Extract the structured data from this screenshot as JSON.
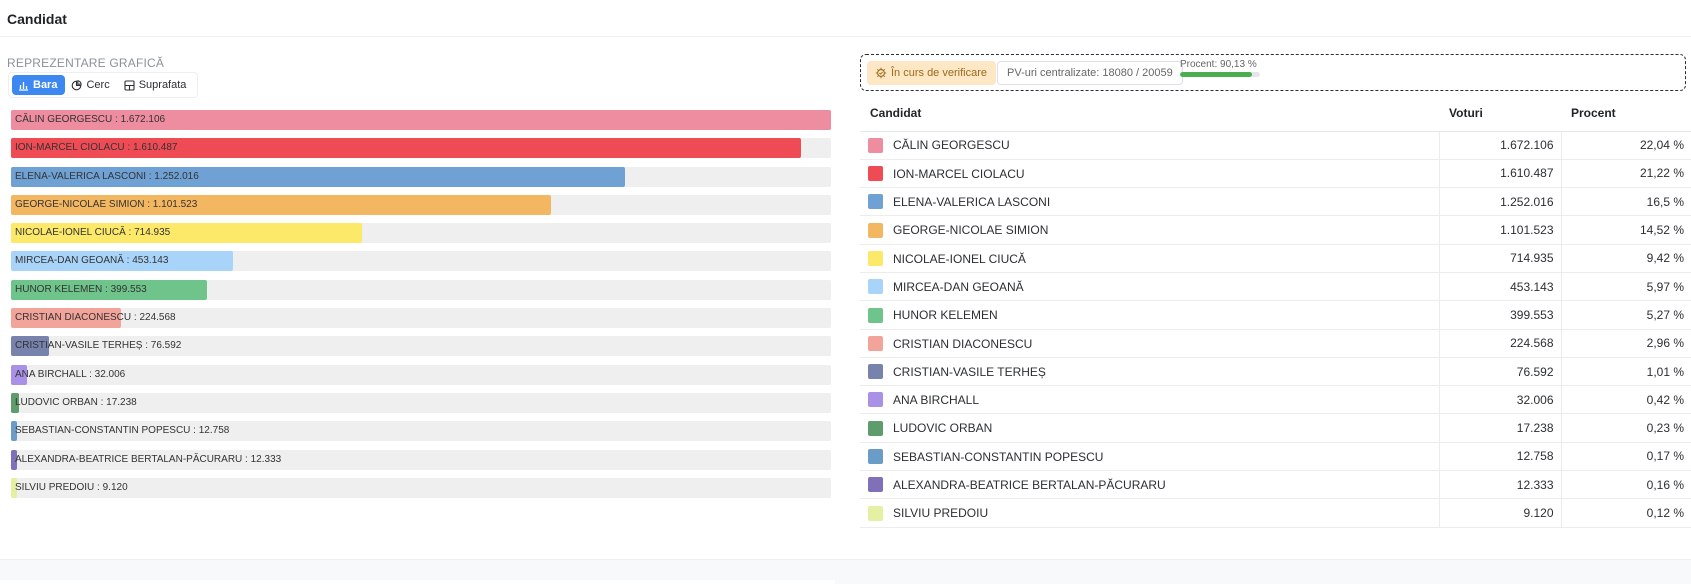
{
  "header": {
    "title": "Candidat"
  },
  "chart_section": {
    "label": "REPREZENTARE GRAFICĂ",
    "chart_types": [
      {
        "label": "Bara",
        "icon": "bar-chart-icon",
        "active": true
      },
      {
        "label": "Cerc",
        "icon": "pie-chart-icon",
        "active": false
      },
      {
        "label": "Suprafata",
        "icon": "area-chart-icon",
        "active": false
      }
    ]
  },
  "status": {
    "badge_label": "În curs de verificare",
    "badge_icon": "gear-check-icon",
    "pv_text": "PV-uri centralizate: 18080 / 20059",
    "percent_text": "Procent: 90,13 %",
    "progress": 0.9013
  },
  "table": {
    "headers": {
      "candidate": "Candidat",
      "votes": "Voturi",
      "percent": "Procent"
    }
  },
  "chart_data": {
    "type": "bar",
    "orientation": "horizontal",
    "categories": [
      "CĂLIN GEORGESCU",
      "ION-MARCEL CIOLACU",
      "ELENA-VALERICA LASCONI",
      "GEORGE-NICOLAE SIMION",
      "NICOLAE-IONEL CIUCĂ",
      "MIRCEA-DAN GEOANĂ",
      "HUNOR KELEMEN",
      "CRISTIAN DIACONESCU",
      "CRISTIAN-VASILE TERHEȘ",
      "ANA BIRCHALL",
      "LUDOVIC ORBAN",
      "SEBASTIAN-CONSTANTIN POPESCU",
      "ALEXANDRA-BEATRICE BERTALAN-PĂCURARU",
      "SILVIU PREDOIU"
    ],
    "values": [
      1672106,
      1610487,
      1252016,
      1101523,
      714935,
      453143,
      399553,
      224568,
      76592,
      32006,
      17238,
      12758,
      12333,
      9120
    ],
    "bar_labels": [
      "CĂLIN GEORGESCU : 1.672.106",
      "ION-MARCEL CIOLACU : 1.610.487",
      "ELENA-VALERICA LASCONI : 1.252.016",
      "GEORGE-NICOLAE SIMION : 1.101.523",
      "NICOLAE-IONEL CIUCĂ : 714.935",
      "MIRCEA-DAN GEOANĂ : 453.143",
      "HUNOR KELEMEN : 399.553",
      "CRISTIAN DIACONESCU : 224.568",
      "CRISTIAN-VASILE TERHEȘ : 76.592",
      "ANA BIRCHALL : 32.006",
      "LUDOVIC ORBAN : 17.238",
      "SEBASTIAN-CONSTANTIN POPESCU : 12.758",
      "ALEXANDRA-BEATRICE BERTALAN-PĂCURARU : 12.333",
      "SILVIU PREDOIU : 9.120"
    ],
    "votes_display": [
      "1.672.106",
      "1.610.487",
      "1.252.016",
      "1.101.523",
      "714.935",
      "453.143",
      "399.553",
      "224.568",
      "76.592",
      "32.006",
      "17.238",
      "12.758",
      "12.333",
      "9.120"
    ],
    "percent_display": [
      "22,04 %",
      "21,22 %",
      "16,5 %",
      "14,52 %",
      "9,42 %",
      "5,97 %",
      "5,27 %",
      "2,96 %",
      "1,01 %",
      "0,42 %",
      "0,23 %",
      "0,17 %",
      "0,16 %",
      "0,12 %"
    ],
    "colors": [
      "#ee8ca0",
      "#ee4b55",
      "#6fa1d4",
      "#f4b761",
      "#fce96a",
      "#a8d4fa",
      "#6ec48a",
      "#f3a49a",
      "#7783ad",
      "#a891e6",
      "#5e9d6b",
      "#6a9cc8",
      "#7f70b8",
      "#e6f0a3"
    ],
    "xlim": [
      0,
      1672106
    ],
    "grid": false,
    "legend": "none"
  }
}
